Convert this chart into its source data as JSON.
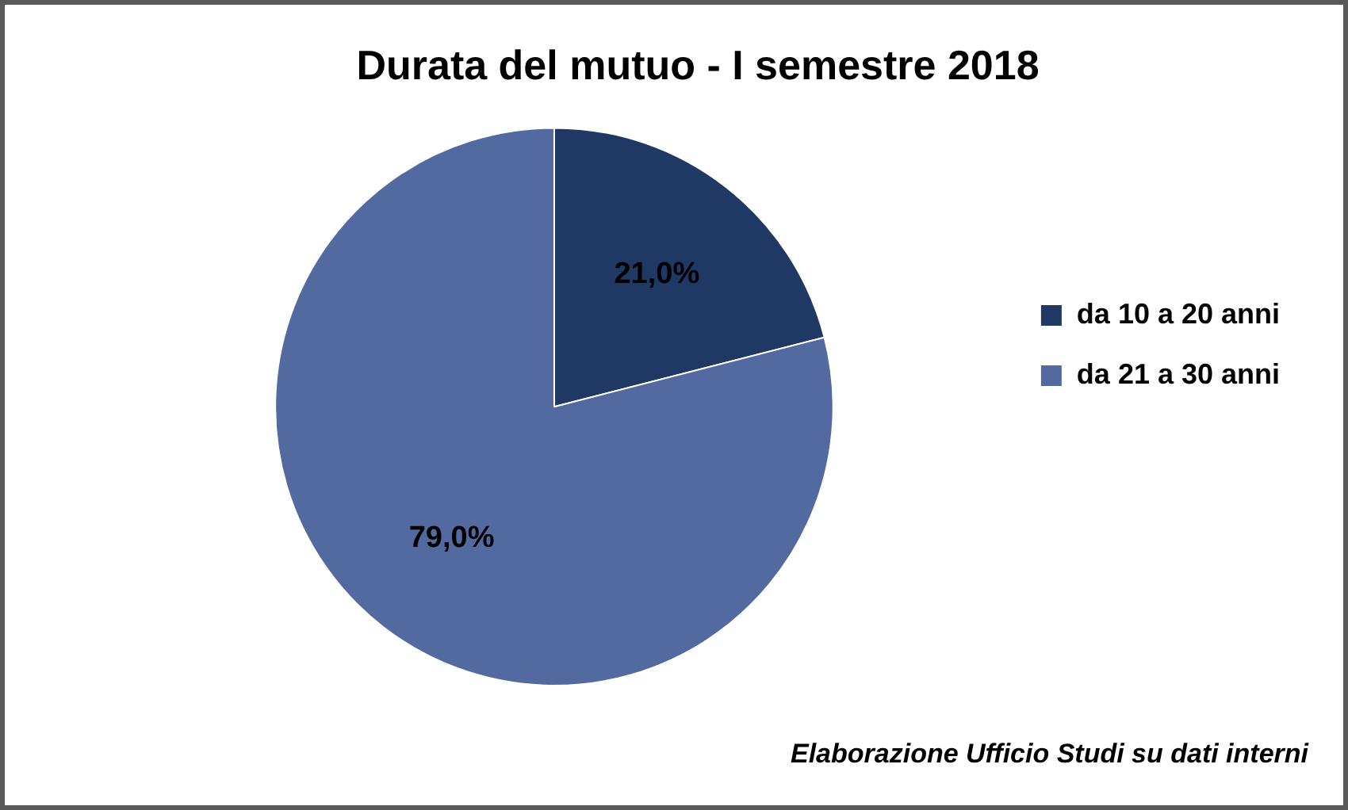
{
  "chart_data": {
    "type": "pie",
    "title": "Durata del mutuo - I semestre 2018",
    "categories": [
      "da 10 a 20 anni",
      "da 21 a 30 anni"
    ],
    "values": [
      21.0,
      79.0
    ],
    "colors": [
      "#1f3864",
      "#526aa0"
    ],
    "value_labels": [
      "21,0%",
      "79,0%"
    ],
    "legend": "right",
    "annotations": [
      "Elaborazione Ufficio Studi su dati interni"
    ]
  }
}
